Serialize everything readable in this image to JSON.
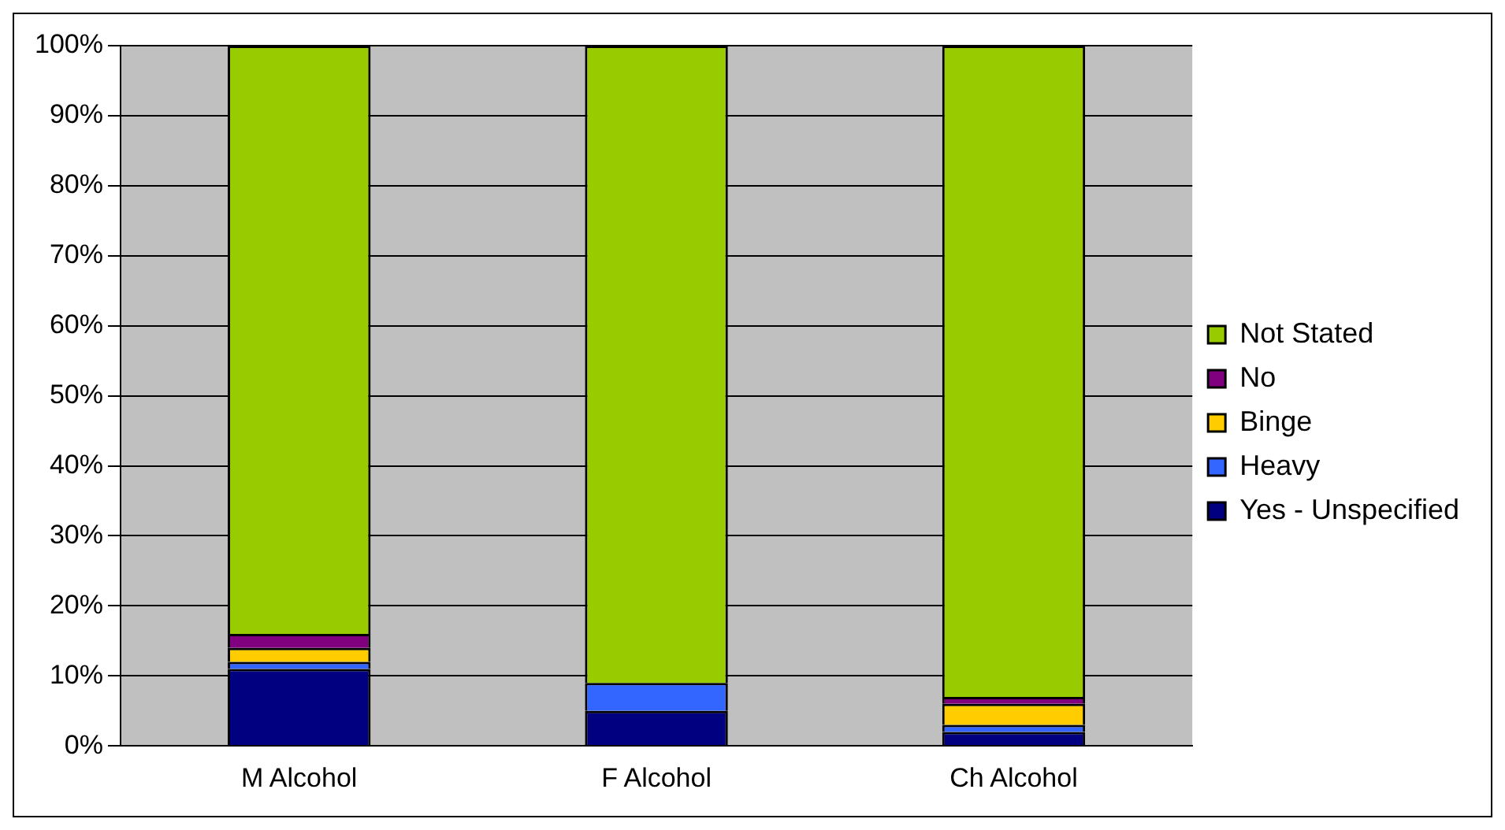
{
  "chart_data": {
    "type": "bar",
    "stacked": true,
    "categories": [
      "M Alcohol",
      "F Alcohol",
      "Ch Alcohol"
    ],
    "series": [
      {
        "name": "Yes - Unspecified",
        "color": "#000080",
        "values": [
          11,
          5,
          2
        ]
      },
      {
        "name": "Heavy",
        "color": "#3366ff",
        "values": [
          1,
          4,
          1
        ]
      },
      {
        "name": "Binge",
        "color": "#ffcc00",
        "values": [
          2,
          0,
          3
        ]
      },
      {
        "name": "No",
        "color": "#800080",
        "values": [
          2,
          0,
          1
        ]
      },
      {
        "name": "Not Stated",
        "color": "#99cc00",
        "values": [
          84,
          91,
          93
        ]
      }
    ],
    "ylim": [
      0,
      100
    ],
    "yticks": [
      {
        "value": 0,
        "label": "0%"
      },
      {
        "value": 10,
        "label": "10%"
      },
      {
        "value": 20,
        "label": "20%"
      },
      {
        "value": 30,
        "label": "30%"
      },
      {
        "value": 40,
        "label": "40%"
      },
      {
        "value": 50,
        "label": "50%"
      },
      {
        "value": 60,
        "label": "60%"
      },
      {
        "value": 70,
        "label": "70%"
      },
      {
        "value": 80,
        "label": "80%"
      },
      {
        "value": 90,
        "label": "90%"
      },
      {
        "value": 100,
        "label": "100%"
      }
    ],
    "grid": "y",
    "legend": "right"
  }
}
